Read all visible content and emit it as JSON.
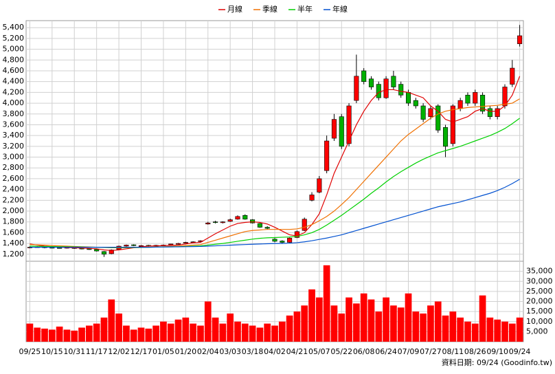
{
  "chart_data": [
    {
      "type": "candlestick",
      "categories": [
        "09/25",
        null,
        null,
        "10/15",
        null,
        null,
        "10/31",
        null,
        null,
        "11/17",
        null,
        null,
        "12/02",
        null,
        null,
        "12/17",
        null,
        null,
        "01/05",
        null,
        null,
        "01/20",
        null,
        null,
        "02/04",
        null,
        null,
        "03/03",
        null,
        null,
        "03/18",
        null,
        null,
        "04/02",
        null,
        null,
        "04/21",
        null,
        null,
        "05/07",
        null,
        null,
        "05/22",
        null,
        null,
        "06/08",
        null,
        null,
        "06/24",
        null,
        null,
        "07/09",
        null,
        null,
        "07/27",
        null,
        null,
        "08/11",
        null,
        null,
        "08/26",
        null,
        null,
        "09/10",
        null,
        null,
        "09/24"
      ],
      "open": [
        1320,
        1330,
        1335,
        1325,
        1320,
        1315,
        1320,
        1310,
        1300,
        1290,
        1250,
        1210,
        1290,
        1350,
        1375,
        1355,
        1365,
        1350,
        1360,
        1375,
        1385,
        1405,
        1425,
        1435,
        1760,
        1800,
        1785,
        1810,
        1850,
        1920,
        1840,
        1770,
        1700,
        1480,
        1445,
        1420,
        1510,
        1640,
        2200,
        2350,
        2750,
        3350,
        3750,
        3250,
        4050,
        4600,
        4450,
        4350,
        4100,
        4500,
        4350,
        4200,
        4050,
        3950,
        3750,
        3950,
        3550,
        3250,
        3900,
        4150,
        4000,
        4150,
        3900,
        3750,
        3950,
        4350,
        5100
      ],
      "high": [
        1345,
        1345,
        1345,
        1335,
        1330,
        1335,
        1330,
        1320,
        1310,
        1300,
        1260,
        1290,
        1360,
        1380,
        1385,
        1370,
        1375,
        1375,
        1380,
        1395,
        1410,
        1430,
        1440,
        1460,
        1800,
        1820,
        1810,
        1860,
        1920,
        1940,
        1850,
        1780,
        1720,
        1500,
        1460,
        1510,
        1640,
        1880,
        2350,
        2650,
        3400,
        3800,
        3800,
        4000,
        4900,
        4650,
        4500,
        4400,
        4500,
        4600,
        4400,
        4250,
        4100,
        4000,
        3950,
        3980,
        3600,
        3980,
        4100,
        4200,
        4250,
        4200,
        3950,
        3950,
        4350,
        4800,
        5450
      ],
      "low": [
        1310,
        1320,
        1310,
        1310,
        1305,
        1305,
        1300,
        1290,
        1280,
        1250,
        1150,
        1200,
        1280,
        1340,
        1350,
        1345,
        1340,
        1340,
        1355,
        1365,
        1380,
        1400,
        1415,
        1425,
        1750,
        1770,
        1770,
        1800,
        1840,
        1840,
        1770,
        1690,
        1660,
        1420,
        1400,
        1410,
        1500,
        1630,
        2180,
        2330,
        2700,
        3300,
        3150,
        3200,
        4000,
        4350,
        4250,
        4050,
        4080,
        4250,
        4100,
        3950,
        3900,
        3650,
        3700,
        3450,
        3000,
        3200,
        3850,
        3950,
        3950,
        3800,
        3700,
        3700,
        3900,
        4300,
        5050
      ],
      "close": [
        1330,
        1335,
        1320,
        1320,
        1315,
        1325,
        1310,
        1300,
        1290,
        1260,
        1200,
        1280,
        1350,
        1370,
        1360,
        1360,
        1350,
        1365,
        1370,
        1390,
        1400,
        1420,
        1430,
        1450,
        1780,
        1790,
        1800,
        1840,
        1900,
        1850,
        1780,
        1700,
        1680,
        1440,
        1420,
        1500,
        1620,
        1850,
        2300,
        2600,
        3300,
        3700,
        3200,
        3950,
        4500,
        4400,
        4300,
        4100,
        4450,
        4300,
        4150,
        4000,
        3950,
        3700,
        3900,
        3500,
        3200,
        3950,
        4050,
        4000,
        4200,
        3850,
        3750,
        3900,
        4300,
        4650,
        5250
      ],
      "up_color": "#ff0000",
      "down_color": "#00b000",
      "series": [
        {
          "name": "月線",
          "color": "#e00000",
          "values": [
            1390,
            1370,
            1350,
            1340,
            1330,
            1325,
            1320,
            1315,
            1310,
            1300,
            1280,
            1270,
            1280,
            1300,
            1320,
            1340,
            1350,
            1355,
            1360,
            1365,
            1370,
            1390,
            1410,
            1420,
            1500,
            1580,
            1650,
            1720,
            1770,
            1790,
            1800,
            1790,
            1760,
            1700,
            1630,
            1560,
            1540,
            1600,
            1750,
            1950,
            2300,
            2700,
            3000,
            3300,
            3600,
            3850,
            4050,
            4200,
            4250,
            4250,
            4220,
            4200,
            4150,
            4100,
            3950,
            3850,
            3700,
            3650,
            3700,
            3750,
            3850,
            3900,
            3850,
            3850,
            3950,
            4150,
            4500
          ]
        },
        {
          "name": "季線",
          "color": "#f07000",
          "values": [
            1380,
            1375,
            1370,
            1360,
            1355,
            1350,
            1345,
            1340,
            1335,
            1330,
            1325,
            1320,
            1320,
            1320,
            1322,
            1325,
            1330,
            1335,
            1340,
            1345,
            1350,
            1360,
            1370,
            1380,
            1420,
            1460,
            1500,
            1540,
            1580,
            1620,
            1640,
            1650,
            1660,
            1660,
            1660,
            1660,
            1670,
            1700,
            1750,
            1820,
            1900,
            2000,
            2120,
            2250,
            2400,
            2550,
            2700,
            2850,
            3000,
            3150,
            3300,
            3420,
            3520,
            3620,
            3720,
            3800,
            3850,
            3880,
            3900,
            3920,
            3930,
            3940,
            3950,
            3960,
            3980,
            4000,
            4080
          ]
        },
        {
          "name": "半年",
          "color": "#00d000",
          "values": [
            1350,
            1348,
            1345,
            1342,
            1340,
            1338,
            1336,
            1334,
            1332,
            1330,
            1328,
            1325,
            1325,
            1325,
            1326,
            1328,
            1330,
            1332,
            1335,
            1338,
            1340,
            1345,
            1350,
            1355,
            1370,
            1385,
            1400,
            1420,
            1440,
            1460,
            1480,
            1495,
            1505,
            1510,
            1515,
            1520,
            1530,
            1560,
            1600,
            1660,
            1740,
            1830,
            1920,
            2020,
            2120,
            2220,
            2330,
            2430,
            2540,
            2640,
            2730,
            2810,
            2890,
            2960,
            3020,
            3080,
            3120,
            3160,
            3200,
            3250,
            3300,
            3350,
            3400,
            3460,
            3530,
            3620,
            3720
          ]
        },
        {
          "name": "年線",
          "color": "#0050d0",
          "values": [
            1330,
            1330,
            1330,
            1330,
            1330,
            1330,
            1330,
            1330,
            1330,
            1330,
            1330,
            1330,
            1330,
            1330,
            1330,
            1330,
            1330,
            1332,
            1334,
            1336,
            1338,
            1340,
            1342,
            1345,
            1350,
            1356,
            1362,
            1368,
            1374,
            1380,
            1385,
            1390,
            1395,
            1398,
            1400,
            1405,
            1415,
            1430,
            1450,
            1475,
            1500,
            1530,
            1560,
            1600,
            1640,
            1680,
            1720,
            1760,
            1800,
            1840,
            1880,
            1920,
            1960,
            2000,
            2040,
            2080,
            2110,
            2140,
            2170,
            2210,
            2250,
            2290,
            2330,
            2380,
            2440,
            2510,
            2590
          ]
        }
      ],
      "ylim": [
        1070,
        5530
      ],
      "yticks": [
        {
          "value": 1200,
          "label": "1,200"
        },
        {
          "value": 1400,
          "label": "1,400"
        },
        {
          "value": 1600,
          "label": "1,600"
        },
        {
          "value": 1800,
          "label": "1,800"
        },
        {
          "value": 2000,
          "label": "2,000"
        },
        {
          "value": 2200,
          "label": "2,200"
        },
        {
          "value": 2400,
          "label": "2,400"
        },
        {
          "value": 2600,
          "label": "2,600"
        },
        {
          "value": 2800,
          "label": "2,800"
        },
        {
          "value": 3000,
          "label": "3,000"
        },
        {
          "value": 3200,
          "label": "3,200"
        },
        {
          "value": 3400,
          "label": "3,400"
        },
        {
          "value": 3600,
          "label": "3,600"
        },
        {
          "value": 3800,
          "label": "3,800"
        },
        {
          "value": 4000,
          "label": "4,000"
        },
        {
          "value": 4200,
          "label": "4,200"
        },
        {
          "value": 4400,
          "label": "4,400"
        },
        {
          "value": 4600,
          "label": "4,600"
        },
        {
          "value": 4800,
          "label": "4,800"
        },
        {
          "value": 5000,
          "label": "5,000"
        },
        {
          "value": 5200,
          "label": "5,200"
        },
        {
          "value": 5400,
          "label": "5,400"
        }
      ],
      "grid": true
    },
    {
      "type": "bar",
      "color": "#ff0000",
      "values": [
        9000,
        7000,
        6500,
        6000,
        7500,
        6000,
        5500,
        7000,
        8000,
        9000,
        12000,
        21000,
        14000,
        8000,
        6000,
        7000,
        6500,
        8000,
        10000,
        9000,
        11000,
        12000,
        9000,
        8000,
        20000,
        12000,
        9000,
        14000,
        10000,
        9000,
        8000,
        7000,
        9000,
        8000,
        10000,
        13000,
        15000,
        18000,
        26000,
        22000,
        38000,
        18000,
        14000,
        22000,
        19000,
        24000,
        21000,
        15000,
        22000,
        18000,
        17000,
        24000,
        15000,
        14000,
        18000,
        20000,
        13000,
        15000,
        12000,
        10000,
        9000,
        23000,
        12000,
        11000,
        10000,
        9000,
        12000
      ],
      "ylim": [
        0,
        40000
      ],
      "yticks": [
        {
          "value": 5000,
          "label": "5,000"
        },
        {
          "value": 10000,
          "label": "10,000"
        },
        {
          "value": 15000,
          "label": "15,000"
        },
        {
          "value": 20000,
          "label": "20,000"
        },
        {
          "value": 25000,
          "label": "25,000"
        },
        {
          "value": 30000,
          "label": "30,000"
        },
        {
          "value": 35000,
          "label": "35,000"
        }
      ],
      "grid": true
    }
  ],
  "source": "資料日期: 09/24 (Goodinfo.tw)"
}
